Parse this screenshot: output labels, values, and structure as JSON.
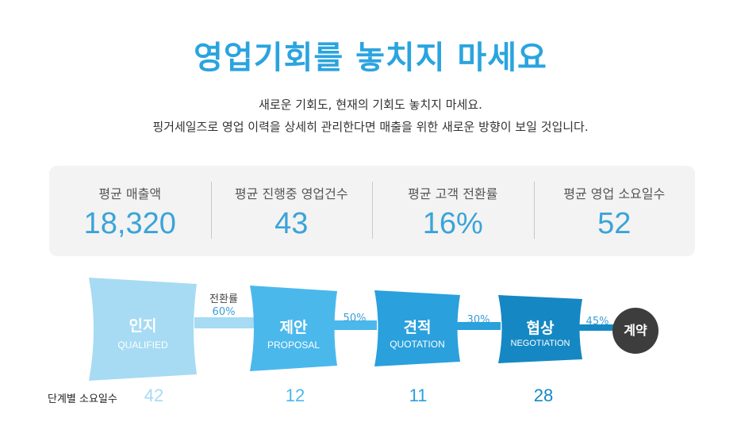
{
  "header": {
    "title": "영업기회를 놓치지 마세요",
    "desc_line1": "새로운 기회도, 현재의 기회도 놓치지 마세요.",
    "desc_line2": "핑거세일즈로 영업 이력을 상세히 관리한다면 매출을 위한 새로운 방향이 보일 것입니다."
  },
  "stats": [
    {
      "label": "평균 매출액",
      "value": "18,320"
    },
    {
      "label": "평균 진행중 영업건수",
      "value": "43"
    },
    {
      "label": "평균 고객 전환률",
      "value": "16%"
    },
    {
      "label": "평균 영업 소요일수",
      "value": "52"
    }
  ],
  "funnel": {
    "rate_label": "전환률",
    "stages": [
      {
        "ko": "인지",
        "en": "QUALIFIED",
        "color": "#a6dbf3"
      },
      {
        "ko": "제안",
        "en": "PROPOSAL",
        "color": "#4bb8ec"
      },
      {
        "ko": "견적",
        "en": "QUOTATION",
        "color": "#2aa0dc"
      },
      {
        "ko": "협상",
        "en": "NEGOTIATION",
        "color": "#1588c3"
      }
    ],
    "rates": [
      "60%",
      "50%",
      "30%",
      "45%"
    ],
    "contract": "계약"
  },
  "days": {
    "label": "단계별 소요일수",
    "values": [
      "42",
      "12",
      "11",
      "28"
    ],
    "colors": [
      "#a6dbf3",
      "#4bb8ec",
      "#2aa0dc",
      "#1588c3"
    ]
  }
}
